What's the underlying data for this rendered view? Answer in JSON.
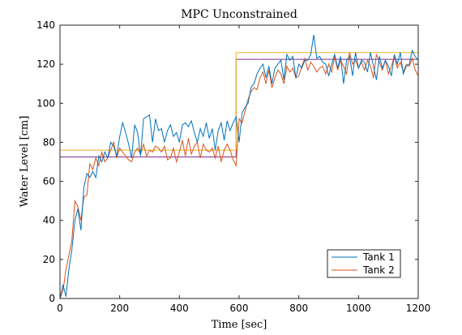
{
  "chart_data": {
    "type": "line",
    "title": "MPC Unconstrained",
    "xlabel": "Time [sec]",
    "ylabel": "Water Level [cm]",
    "xlim": [
      0,
      1200
    ],
    "ylim": [
      0,
      140
    ],
    "xticks": [
      0,
      200,
      400,
      600,
      800,
      1000,
      1200
    ],
    "yticks": [
      0,
      20,
      40,
      60,
      80,
      100,
      120,
      140
    ],
    "grid": false,
    "legend_position": "bottom-right",
    "series": [
      {
        "name": "Tank 1",
        "color": "#0072BD",
        "x": [
          0,
          10,
          20,
          30,
          40,
          50,
          60,
          70,
          80,
          90,
          100,
          110,
          120,
          130,
          140,
          150,
          160,
          170,
          180,
          190,
          200,
          210,
          220,
          230,
          240,
          250,
          260,
          270,
          280,
          290,
          300,
          310,
          320,
          330,
          340,
          350,
          360,
          370,
          380,
          390,
          400,
          410,
          420,
          430,
          440,
          450,
          460,
          470,
          480,
          490,
          500,
          510,
          520,
          530,
          540,
          550,
          560,
          570,
          580,
          590,
          600,
          610,
          620,
          630,
          640,
          650,
          660,
          670,
          680,
          690,
          700,
          710,
          720,
          730,
          740,
          750,
          760,
          770,
          780,
          790,
          800,
          810,
          820,
          830,
          840,
          850,
          860,
          870,
          880,
          890,
          900,
          910,
          920,
          930,
          940,
          950,
          960,
          970,
          980,
          990,
          1000,
          1010,
          1020,
          1030,
          1040,
          1050,
          1060,
          1070,
          1080,
          1090,
          1100,
          1110,
          1120,
          1130,
          1140,
          1150,
          1160,
          1170,
          1180,
          1190,
          1200
        ],
        "y": [
          0,
          7,
          1,
          15,
          25,
          40,
          46,
          35,
          57,
          64,
          62,
          65,
          62,
          73,
          70,
          75,
          72,
          80,
          78,
          73,
          83,
          90,
          85,
          79,
          72,
          89,
          85,
          73,
          92,
          93,
          94,
          80,
          92,
          86,
          87,
          80,
          86,
          89,
          83,
          85,
          80,
          89,
          90,
          88,
          91,
          85,
          80,
          87,
          83,
          90,
          82,
          87,
          76,
          86,
          90,
          81,
          91,
          86,
          90,
          93,
          80,
          95,
          98,
          100,
          108,
          110,
          115,
          118,
          120,
          113,
          119,
          110,
          118,
          120,
          122,
          112,
          125,
          122,
          124,
          113,
          120,
          118,
          122,
          122,
          125,
          135,
          123,
          124,
          121,
          120,
          114,
          120,
          125,
          118,
          124,
          110,
          122,
          124,
          114,
          126,
          118,
          122,
          121,
          116,
          126,
          119,
          112,
          124,
          118,
          122,
          119,
          114,
          125,
          120,
          126,
          115,
          119,
          120,
          127,
          124,
          122
        ],
        "step_x": [
          0,
          590,
          590,
          1200
        ],
        "step_y": [
          0,
          0,
          0,
          0
        ]
      },
      {
        "name": "Tank 2",
        "color": "#D95319",
        "x": [
          0,
          10,
          20,
          30,
          40,
          50,
          60,
          70,
          80,
          90,
          100,
          110,
          120,
          130,
          140,
          150,
          160,
          170,
          180,
          190,
          200,
          210,
          220,
          230,
          240,
          250,
          260,
          270,
          280,
          290,
          300,
          310,
          320,
          330,
          340,
          350,
          360,
          370,
          380,
          390,
          400,
          410,
          420,
          430,
          440,
          450,
          460,
          470,
          480,
          490,
          500,
          510,
          520,
          530,
          540,
          550,
          560,
          570,
          580,
          590,
          600,
          610,
          620,
          630,
          640,
          650,
          660,
          670,
          680,
          690,
          700,
          710,
          720,
          730,
          740,
          750,
          760,
          770,
          780,
          790,
          800,
          810,
          820,
          830,
          840,
          850,
          860,
          870,
          880,
          890,
          900,
          910,
          920,
          930,
          940,
          950,
          960,
          970,
          980,
          990,
          1000,
          1010,
          1020,
          1030,
          1040,
          1050,
          1060,
          1070,
          1080,
          1090,
          1100,
          1110,
          1120,
          1130,
          1140,
          1150,
          1160,
          1170,
          1180,
          1190,
          1200
        ],
        "y": [
          0,
          4,
          15,
          22,
          30,
          50,
          47,
          40,
          52,
          53,
          69,
          66,
          72,
          68,
          75,
          70,
          72,
          76,
          80,
          72,
          77,
          75,
          73,
          71,
          70,
          75,
          77,
          74,
          79,
          73,
          76,
          75,
          78,
          77,
          75,
          78,
          71,
          72,
          77,
          70,
          75,
          81,
          73,
          82,
          74,
          78,
          80,
          72,
          79,
          76,
          75,
          77,
          72,
          78,
          70,
          76,
          79,
          76,
          71,
          68,
          92,
          90,
          96,
          102,
          106,
          108,
          107,
          113,
          116,
          110,
          117,
          108,
          113,
          117,
          115,
          110,
          119,
          116,
          118,
          113,
          114,
          119,
          123,
          117,
          121,
          119,
          116,
          118,
          119,
          115,
          120,
          116,
          124,
          117,
          122,
          119,
          115,
          126,
          120,
          122,
          118,
          121,
          117,
          122,
          119,
          113,
          125,
          121,
          117,
          122,
          115,
          119,
          124,
          118,
          121,
          116,
          120,
          119,
          123,
          117,
          114
        ],
        "step_x": [
          0,
          590,
          590,
          1200
        ],
        "step_y": [
          0,
          0,
          0,
          0
        ]
      },
      {
        "color": "#EDB120",
        "x": [
          0,
          590,
          590,
          1200
        ],
        "y": [
          76,
          76,
          126,
          126
        ]
      },
      {
        "color": "#7E2F8E",
        "x": [
          0,
          590,
          590,
          1200
        ],
        "y": [
          72.5,
          72.5,
          122.5,
          122.5
        ]
      }
    ]
  }
}
